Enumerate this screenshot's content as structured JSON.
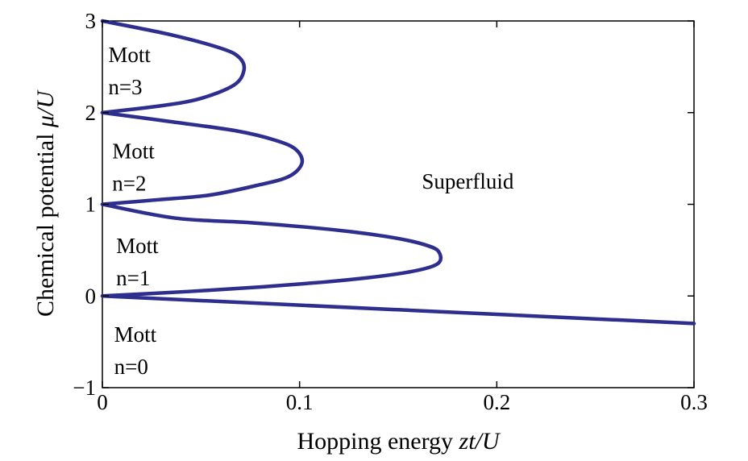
{
  "chart_data": {
    "type": "line",
    "xlabel": "Hopping energy zt/U",
    "xlabel_parts": {
      "text": "Hopping energy ",
      "var": "zt/U"
    },
    "ylabel": "Chemical potential μ/U",
    "ylabel_parts": {
      "text": "Chemical potential ",
      "var": "μ/U"
    },
    "xlim": [
      0,
      0.3
    ],
    "ylim": [
      -1,
      3
    ],
    "x_ticks": [
      {
        "value": 0,
        "label": "0"
      },
      {
        "value": 0.1,
        "label": "0.1"
      },
      {
        "value": 0.2,
        "label": "0.2"
      },
      {
        "value": 0.3,
        "label": "0.3"
      }
    ],
    "y_ticks": [
      {
        "value": -1,
        "label": "−1"
      },
      {
        "value": 0,
        "label": "0"
      },
      {
        "value": 1,
        "label": "1"
      },
      {
        "value": 2,
        "label": "2"
      },
      {
        "value": 3,
        "label": "3"
      }
    ],
    "grid": false,
    "line_color": "#2e2e8e",
    "series": [
      {
        "lobe": "n=1",
        "x": [
          0,
          0.0447,
          0.0815,
          0.1115,
          0.1349,
          0.1523,
          0.1638,
          0.1699,
          0.1716,
          0.1699,
          0.1648,
          0.1562,
          0.1436,
          0.1266,
          0.1041,
          0.0748,
          0.0367,
          0
        ],
        "y": [
          0,
          0.05,
          0.1,
          0.15,
          0.2,
          0.25,
          0.3,
          0.35,
          0.414,
          0.5,
          0.55,
          0.6,
          0.65,
          0.7,
          0.75,
          0.8,
          0.85,
          1
        ]
      },
      {
        "lobe": "n=2",
        "x": [
          0,
          0.0283,
          0.0542,
          0.0771,
          0.0942,
          0.1012,
          0.098,
          0.0875,
          0.0682,
          0.0352,
          0
        ],
        "y": [
          1,
          1.05,
          1.1,
          1.2,
          1.3,
          1.449,
          1.6,
          1.7,
          1.8,
          1.9,
          2
        ]
      },
      {
        "lobe": "n=3",
        "x": [
          0,
          0.0282,
          0.0491,
          0.0667,
          0.0718,
          0.0695,
          0.0604,
          0.0346,
          0
        ],
        "y": [
          2,
          2.07,
          2.15,
          2.3,
          2.464,
          2.6,
          2.7,
          2.85,
          3
        ]
      },
      {
        "lobe": "n=0",
        "x": [
          0,
          0.05,
          0.1,
          0.15,
          0.2,
          0.25,
          0.3
        ],
        "y": [
          0,
          -0.05,
          -0.1,
          -0.15,
          -0.2,
          -0.25,
          -0.3
        ]
      }
    ],
    "annotations": [
      {
        "id": "mott-3",
        "title": "Mott",
        "sub": "n=3",
        "x": 0.003,
        "y": 2.55
      },
      {
        "id": "mott-2",
        "title": "Mott",
        "sub": "n=2",
        "x": 0.005,
        "y": 1.5
      },
      {
        "id": "mott-1",
        "title": "Mott",
        "sub": "n=1",
        "x": 0.007,
        "y": 0.47
      },
      {
        "id": "mott-0",
        "title": "Mott",
        "sub": "n=0",
        "x": 0.006,
        "y": -0.5
      },
      {
        "id": "superfluid",
        "title": "Superfluid",
        "x": 0.162,
        "y": 1.17
      }
    ]
  }
}
